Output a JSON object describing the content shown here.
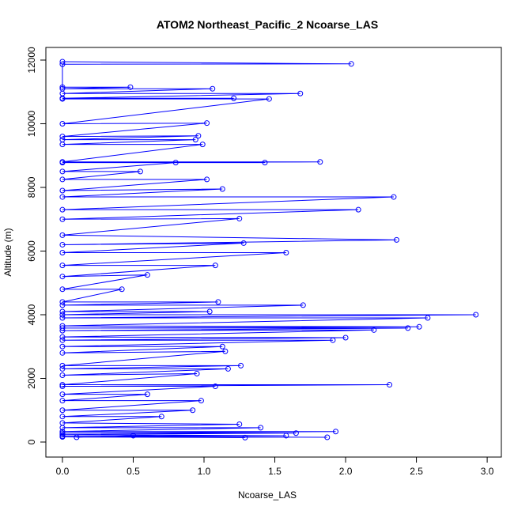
{
  "chart_data": {
    "type": "line",
    "title": "ATOM2 Northeast_Pacific_2 Ncoarse_LAS",
    "xlabel": "Ncoarse_LAS",
    "ylabel": "Altitude (m)",
    "color": "#0000ff",
    "markers": true,
    "grid": false,
    "xlim": [
      -0.117,
      3.1
    ],
    "ylim": [
      -472,
      12397
    ],
    "xticks": [
      {
        "value": 0,
        "label": "0.0"
      },
      {
        "value": 0.5,
        "label": "0.5"
      },
      {
        "value": 1,
        "label": "1.0"
      },
      {
        "value": 1.5,
        "label": "1.5"
      },
      {
        "value": 2,
        "label": "2.0"
      },
      {
        "value": 2.5,
        "label": "2.5"
      },
      {
        "value": 3,
        "label": "3.0"
      }
    ],
    "yticks": [
      0,
      2000,
      4000,
      6000,
      8000,
      10000,
      12000
    ],
    "x": [
      0,
      2.04,
      0,
      0,
      0.48,
      0,
      1.06,
      0,
      1.68,
      0,
      1.21,
      0,
      1.46,
      0,
      1.02,
      0,
      0.96,
      0,
      0.94,
      0,
      0.99,
      0,
      1.82,
      0,
      1.43,
      0.8,
      0,
      0.55,
      0,
      1.02,
      0,
      1.13,
      0,
      2.34,
      0,
      2.09,
      0,
      1.25,
      0,
      2.36,
      0,
      1.28,
      0,
      1.58,
      0,
      1.08,
      0,
      0.6,
      0,
      0.42,
      0,
      1.1,
      0,
      1.7,
      0,
      1.04,
      0,
      2.92,
      0,
      2.58,
      0,
      2.52,
      0,
      2.44,
      0,
      2.2,
      0,
      2.0,
      0,
      1.91,
      0,
      1.13,
      0,
      1.15,
      0,
      1.26,
      0,
      1.17,
      0,
      0.95,
      0,
      2.31,
      0,
      1.08,
      0,
      0.6,
      0,
      0.98,
      0,
      0.92,
      0,
      0.7,
      0,
      1.25,
      0,
      1.4,
      0,
      1.93,
      0,
      1.65,
      0,
      1.58,
      0,
      1.87,
      0,
      1.29,
      0.5,
      0.1
    ],
    "values": [
      11950,
      11880,
      11870,
      11150,
      11150,
      11100,
      11100,
      10950,
      10950,
      10800,
      10800,
      10780,
      10780,
      10000,
      10020,
      9600,
      9620,
      9500,
      9500,
      9350,
      9350,
      8800,
      8800,
      8780,
      8780,
      8780,
      8500,
      8500,
      8250,
      8250,
      7900,
      7950,
      7700,
      7700,
      7300,
      7300,
      7000,
      7020,
      6500,
      6350,
      6200,
      6250,
      5950,
      5950,
      5550,
      5550,
      5200,
      5250,
      4800,
      4800,
      4400,
      4400,
      4300,
      4300,
      4100,
      4100,
      4000,
      4000,
      3900,
      3900,
      3650,
      3620,
      3580,
      3580,
      3500,
      3520,
      3300,
      3280,
      3200,
      3200,
      3000,
      3000,
      2800,
      2850,
      2400,
      2400,
      2300,
      2300,
      2100,
      2150,
      1800,
      1800,
      1750,
      1750,
      1500,
      1500,
      1300,
      1300,
      1000,
      1000,
      800,
      800,
      600,
      560,
      450,
      450,
      330,
      330,
      280,
      280,
      230,
      200,
      180,
      150,
      160,
      140,
      200,
      150
    ]
  }
}
